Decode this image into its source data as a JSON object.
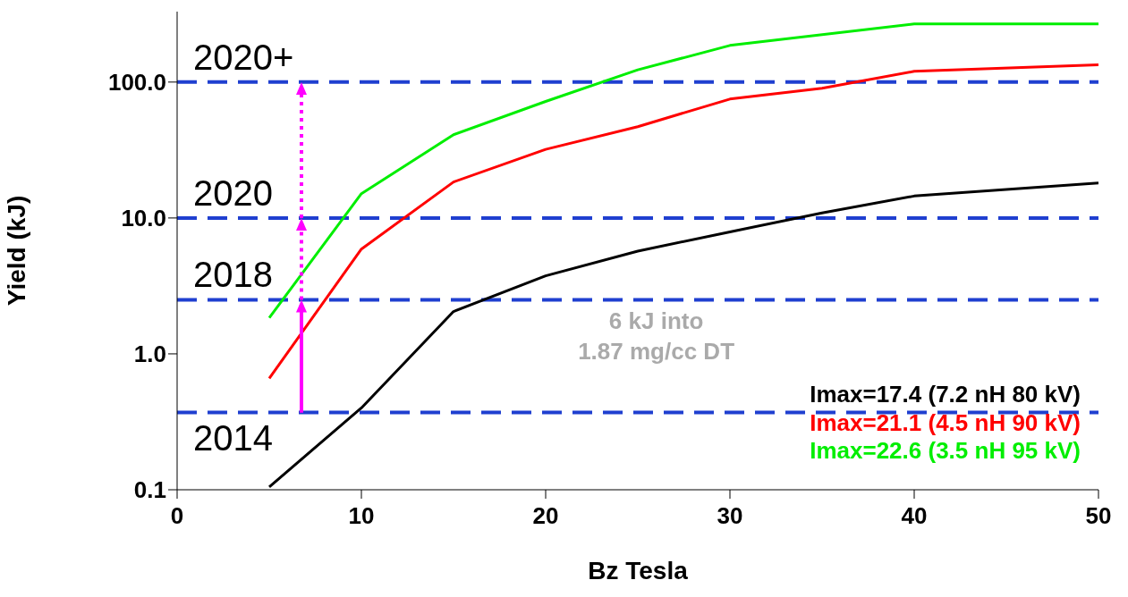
{
  "chart_data": {
    "type": "line",
    "xlabel": "Bz Tesla",
    "ylabel": "Yield (kJ)",
    "log": "y",
    "grid": false,
    "legend": "bottom right",
    "marker": "none",
    "line_style": "solid",
    "x": [
      5,
      10,
      15,
      20,
      25,
      30,
      35,
      40,
      50
    ],
    "xlim": [
      0,
      50
    ],
    "xticks": [
      0,
      10,
      20,
      30,
      40,
      50
    ],
    "ylim": [
      0.1,
      330
    ],
    "yticks": [
      {
        "value": 0.1,
        "label": "0.1"
      },
      {
        "value": 1,
        "label": "1.0"
      },
      {
        "value": 10,
        "label": "10.0"
      },
      {
        "value": 100,
        "label": "100.0"
      }
    ],
    "series": [
      {
        "name": "Imax=17.4 (7.2 nH 80 kV)",
        "color": "#000000",
        "values": [
          0.105,
          0.4,
          2.05,
          3.75,
          5.7,
          7.9,
          10.9,
          14.5,
          18.1
        ]
      },
      {
        "name": "Imax=21.1 (4.5 nH 90 kV)",
        "color": "#ff0000",
        "values": [
          0.66,
          5.9,
          18.4,
          32,
          47,
          75,
          90,
          120,
          134
        ]
      },
      {
        "name": "Imax=22.6 (3.5 nH 95 kV)",
        "color": "#00ee00",
        "values": [
          1.84,
          15.1,
          41,
          72,
          123,
          186,
          null,
          268,
          268
        ]
      }
    ],
    "ref_lines": [
      {
        "axis": "y",
        "value": 0.37,
        "color": "#1f3fd0",
        "line_style": "dashed"
      },
      {
        "axis": "y",
        "value": 2.5,
        "color": "#1f3fd0",
        "line_style": "dashed"
      },
      {
        "axis": "y",
        "value": 10,
        "color": "#1f3fd0",
        "line_style": "dashed"
      },
      {
        "axis": "y",
        "value": 100,
        "color": "#1f3fd0",
        "line_style": "dashed"
      }
    ],
    "annotations": [
      "6 kJ into\n1.87 mg/cc DT",
      {
        "text": "2014",
        "y": 0.37
      },
      {
        "text": "2018",
        "y": 2.5
      },
      {
        "text": "2020",
        "y": 10
      },
      {
        "text": "2020+",
        "y": 100
      }
    ]
  }
}
